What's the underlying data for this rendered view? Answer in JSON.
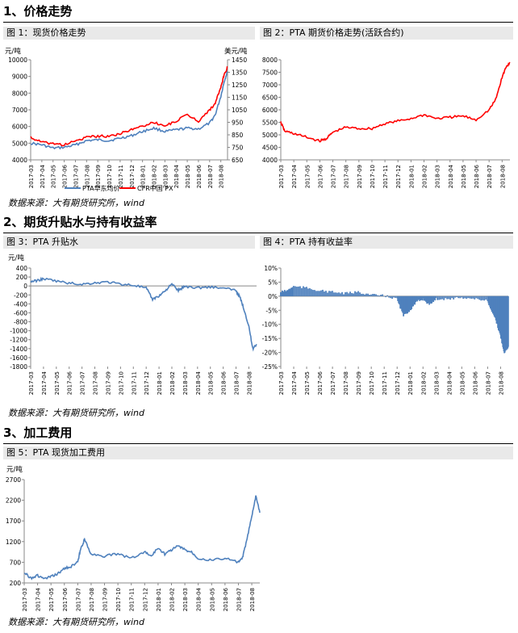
{
  "sections": {
    "s1": "1、价格走势",
    "s2": "2、期货升贴水与持有收益率",
    "s3": "3、加工费用"
  },
  "source_text": "数据来源：大有期货研究所，wind",
  "figures": {
    "f1": "图 1：现货价格走势",
    "f2": "图 2：PTA 期货价格走势(活跃合约)",
    "f3": "图 3：PTA 升贴水",
    "f4": "图 4：PTA 持有收益率",
    "f5": "图 5：PTA 现货加工费用"
  },
  "colors": {
    "blue": "#4f81bd",
    "red": "#ff0000",
    "bar": "#4f81bd"
  },
  "chart_data": [
    {
      "id": "c1",
      "type": "line",
      "title": "图 1：现货价格走势",
      "ylabel": "元/吨",
      "y2label": "美元/吨",
      "ylim": [
        4000,
        10000
      ],
      "yticks": [
        4000,
        5000,
        6000,
        7000,
        8000,
        9000,
        10000
      ],
      "y2lim": [
        650,
        1450
      ],
      "y2ticks": [
        650,
        750,
        850,
        950,
        1050,
        1150,
        1250,
        1350,
        1450
      ],
      "xlabels": [
        "2017-03",
        "2017-04",
        "2017-05",
        "2017-06",
        "2017-07",
        "2017-08",
        "2017-09",
        "2017-10",
        "2017-11",
        "2017-12",
        "2018-01",
        "2018-02",
        "2018-03",
        "2018-04",
        "2018-05",
        "2018-06",
        "2018-07",
        "2018-08"
      ],
      "legend": [
        "PTA华东均价",
        "CFR中国 PX"
      ],
      "series": [
        {
          "name": "PTA华东均价",
          "axis": "left",
          "color": "#4f81bd",
          "x": [
            0,
            1,
            2,
            3,
            4,
            5,
            6,
            7,
            8,
            9,
            10,
            11,
            12,
            13,
            14,
            15,
            16,
            16.5,
            17,
            17.3,
            17.6
          ],
          "y": [
            5000,
            4900,
            4700,
            4750,
            4900,
            5150,
            5200,
            5150,
            5300,
            5450,
            5700,
            5900,
            5700,
            5800,
            5900,
            5850,
            6200,
            6700,
            7800,
            8700,
            9300
          ]
        },
        {
          "name": "CFR中国 PX",
          "axis": "right",
          "color": "#ff0000",
          "x": [
            0,
            1,
            2,
            3,
            4,
            5,
            6,
            7,
            8,
            9,
            10,
            11,
            12,
            13,
            14,
            15,
            16,
            16.5,
            17,
            17.3,
            17.6
          ],
          "y": [
            830,
            790,
            780,
            770,
            800,
            830,
            840,
            840,
            860,
            890,
            920,
            950,
            920,
            960,
            1010,
            960,
            1050,
            1100,
            1230,
            1330,
            1390
          ]
        }
      ]
    },
    {
      "id": "c2",
      "type": "line",
      "title": "图 2：PTA 期货价格走势(活跃合约)",
      "ylim": [
        4000,
        8000
      ],
      "yticks": [
        4000,
        4500,
        5000,
        5500,
        6000,
        6500,
        7000,
        7500,
        8000
      ],
      "xlabels": [
        "2017-03",
        "2017-04",
        "2017-05",
        "2017-06",
        "2017-07",
        "2017-08",
        "2017-09",
        "2017-10",
        "2017-11",
        "2017-12",
        "2018-01",
        "2018-02",
        "2018-03",
        "2018-04",
        "2018-05",
        "2018-06",
        "2018-07",
        "2018-08"
      ],
      "series": [
        {
          "name": "",
          "color": "#ff0000",
          "x": [
            0,
            0.3,
            1,
            2,
            3,
            3.5,
            4,
            5,
            6,
            7,
            8,
            9,
            10,
            11,
            12,
            13,
            14,
            15,
            16,
            16.5,
            17,
            17.3,
            17.6
          ],
          "y": [
            5500,
            5150,
            5050,
            4900,
            4750,
            4850,
            5100,
            5300,
            5250,
            5250,
            5450,
            5550,
            5650,
            5800,
            5650,
            5700,
            5750,
            5600,
            6000,
            6400,
            7300,
            7700,
            7900
          ]
        }
      ]
    },
    {
      "id": "c3",
      "type": "line",
      "title": "图 3：PTA 升贴水",
      "ylabel": "元/吨",
      "ylim": [
        -1800,
        400
      ],
      "yticks": [
        -1800,
        -1600,
        -1400,
        -1200,
        -1000,
        -800,
        -600,
        -400,
        -200,
        0,
        200,
        400
      ],
      "xlabels": [
        "2017-03",
        "2017-04",
        "2017-05",
        "2017-06",
        "2017-07",
        "2017-08",
        "2017-09",
        "2017-10",
        "2017-11",
        "2017-12",
        "2018-01",
        "2018-02",
        "2018-03",
        "2018-04",
        "2018-05",
        "2018-06",
        "2018-07",
        "2018-08"
      ],
      "series": [
        {
          "name": "",
          "color": "#4f81bd",
          "x": [
            0,
            0.5,
            1,
            2,
            3,
            4,
            5,
            6,
            7,
            8,
            9,
            9.5,
            10,
            10.5,
            11,
            11.5,
            12,
            13,
            14,
            15,
            16,
            16.3,
            16.6,
            17,
            17.3,
            17.6
          ],
          "y": [
            100,
            120,
            160,
            110,
            60,
            40,
            70,
            90,
            40,
            20,
            -50,
            -300,
            -220,
            -100,
            40,
            -100,
            -10,
            -40,
            -20,
            -50,
            -100,
            -250,
            -500,
            -900,
            -1400,
            -1300
          ]
        }
      ]
    },
    {
      "id": "c4",
      "type": "bar",
      "title": "图 4：PTA 持有收益率",
      "ylim": [
        -25,
        10
      ],
      "yticks": [
        -25,
        -20,
        -15,
        -10,
        -5,
        0,
        5,
        10
      ],
      "yunit": "%",
      "xlabels": [
        "2017-03",
        "2017-04",
        "2017-05",
        "2017-06",
        "2017-07",
        "2017-08",
        "2017-09",
        "2017-10",
        "2017-11",
        "2017-12",
        "2018-01",
        "2018-02",
        "2018-03",
        "2018-04",
        "2018-05",
        "2018-06",
        "2018-07",
        "2018-08"
      ],
      "series": [
        {
          "name": "",
          "color": "#4f81bd",
          "x": [
            0,
            0.5,
            1,
            2,
            3,
            4,
            5,
            6,
            7,
            8,
            9,
            9.5,
            10,
            10.5,
            11,
            11.5,
            12,
            13,
            14,
            15,
            16,
            16.3,
            16.6,
            17,
            17.3,
            17.6
          ],
          "y": [
            1.5,
            2,
            3.5,
            3,
            2,
            1.5,
            1,
            1.5,
            0.5,
            0.2,
            -1,
            -7,
            -5,
            -2,
            -1,
            -3,
            -1,
            -1,
            -0.5,
            -1,
            -1.5,
            -5,
            -8,
            -14,
            -20,
            -18
          ]
        }
      ]
    },
    {
      "id": "c5",
      "type": "line",
      "title": "图 5：PTA 现货加工费用",
      "ylabel": "元/吨",
      "ylim": [
        200,
        2700
      ],
      "yticks": [
        200,
        700,
        1200,
        1700,
        2200,
        2700
      ],
      "xlabels": [
        "2017-03",
        "2017-04",
        "2017-05",
        "2017-06",
        "2017-07",
        "2017-08",
        "2017-09",
        "2017-10",
        "2017-11",
        "2017-12",
        "2018-01",
        "2018-02",
        "2018-03",
        "2018-04",
        "2018-05",
        "2018-06",
        "2018-07",
        "2018-08"
      ],
      "series": [
        {
          "name": "",
          "color": "#4f81bd",
          "x": [
            0,
            0.5,
            1,
            1.5,
            2,
            2.5,
            3,
            3.5,
            4,
            4.2,
            4.5,
            5,
            6,
            7,
            8,
            9,
            9.5,
            10,
            10.5,
            11,
            11.5,
            12,
            12.5,
            13,
            14,
            15,
            16,
            16.3,
            16.6,
            17,
            17.3,
            17.6
          ],
          "y": [
            450,
            320,
            380,
            300,
            350,
            420,
            550,
            600,
            700,
            1000,
            1250,
            900,
            850,
            900,
            800,
            950,
            850,
            1050,
            900,
            1000,
            1100,
            1000,
            950,
            800,
            750,
            800,
            700,
            800,
            1200,
            1800,
            2300,
            1900
          ]
        }
      ]
    }
  ]
}
